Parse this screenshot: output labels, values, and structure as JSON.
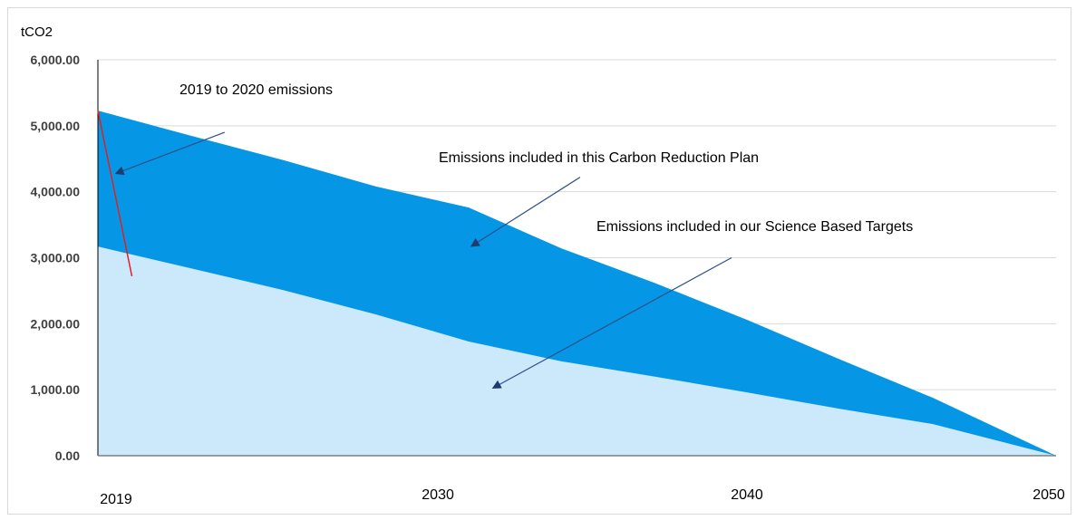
{
  "chart_data": {
    "type": "area",
    "title": "",
    "xlabel": "",
    "ylabel": "tCO2",
    "xlim": [
      2019,
      2050
    ],
    "ylim": [
      0,
      6000
    ],
    "y_ticks": [
      "0.00",
      "1,000.00",
      "2,000.00",
      "3,000.00",
      "4,000.00",
      "5,000.00",
      "6,000.00"
    ],
    "y_tick_values": [
      0,
      1000,
      2000,
      3000,
      4000,
      5000,
      6000
    ],
    "x_ticks": [
      "2019",
      "2030",
      "2040",
      "2050"
    ],
    "x_tick_values": [
      2019,
      2030,
      2040,
      2050
    ],
    "grid": true,
    "legend": "none",
    "series": [
      {
        "color": "#cce9fb",
        "x": [
          2019,
          2022,
          2025,
          2028,
          2031,
          2034,
          2037,
          2040,
          2043,
          2046,
          2050
        ],
        "values": [
          3170,
          2840,
          2510,
          2140,
          1730,
          1430,
          1200,
          960,
          710,
          480,
          0
        ]
      },
      {
        "color": "#0597e6",
        "x": [
          2019,
          2022,
          2025,
          2028,
          2031,
          2034,
          2037,
          2040,
          2043,
          2046,
          2050
        ],
        "values": [
          5230,
          4850,
          4480,
          4080,
          3760,
          3140,
          2620,
          2060,
          1460,
          880,
          0
        ]
      }
    ],
    "line_series": [
      {
        "color": "#e02020",
        "x": [
          2019,
          2020.1
        ],
        "values": [
          5230,
          2720
        ]
      }
    ],
    "annotations": [
      {
        "id": "a1",
        "text": "2019 to 2020 emissions",
        "arrow_from": [
          2023.1,
          4900
        ],
        "arrow_to": [
          2019.6,
          4280
        ]
      },
      {
        "id": "a2",
        "text": "Emissions included in this Carbon Reduction Plan",
        "arrow_from": [
          2034.6,
          4220
        ],
        "arrow_to": [
          2031.1,
          3180
        ]
      },
      {
        "id": "a3",
        "text": "Emissions included in our Science Based Targets",
        "arrow_from": [
          2039.5,
          3000
        ],
        "arrow_to": [
          2031.8,
          1030
        ]
      }
    ],
    "annotation_color": "#2f4f86"
  }
}
